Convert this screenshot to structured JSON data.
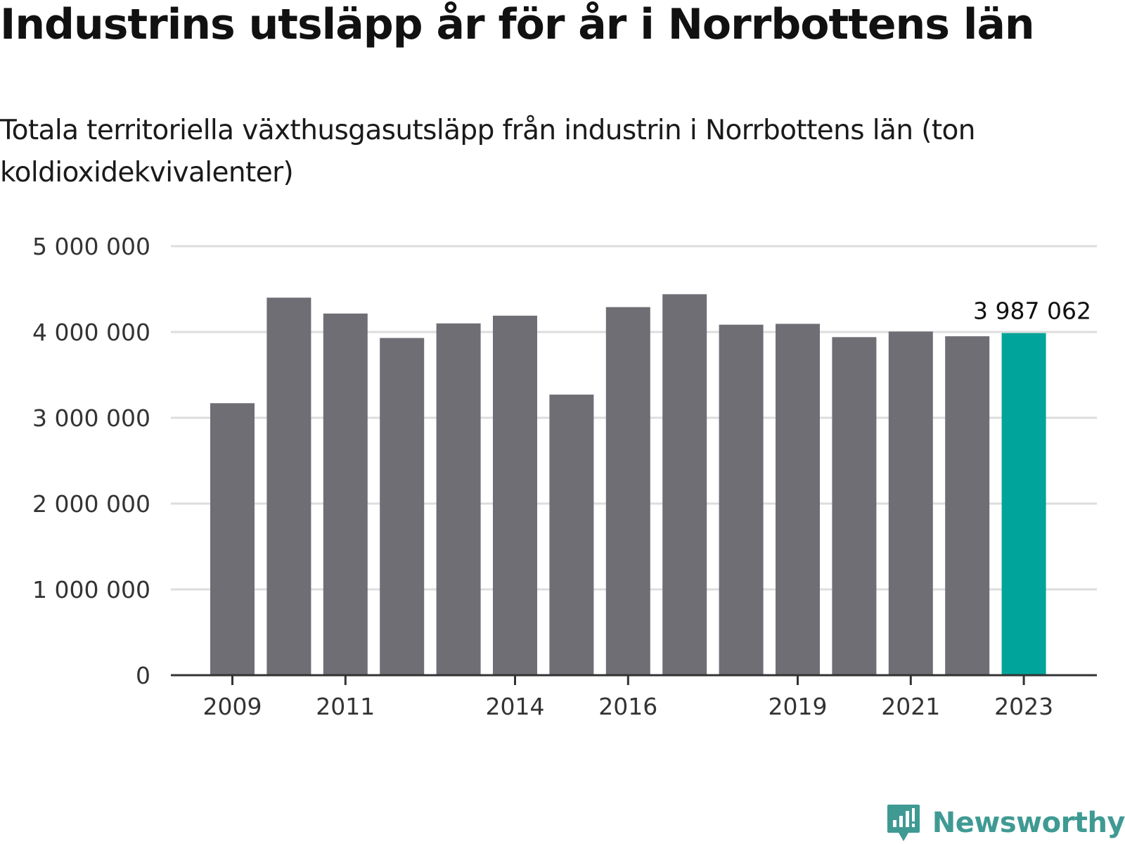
{
  "title": "Industrins utsläpp år för år i Norrbottens län",
  "subtitle": "Totala territoriella växthusgasutsläpp från industrin i Norrbottens län (ton koldioxidekvivalenter)",
  "logo_text": "Newsworthy",
  "colors": {
    "bar": "#6f6e75",
    "highlight": "#00a49a",
    "grid": "#dddddd",
    "axis": "#333333",
    "logo": "#3f9a93"
  },
  "chart_data": {
    "type": "bar",
    "title": "Industrins utsläpp år för år i Norrbottens län",
    "subtitle": "Totala territoriella växthusgasutsläpp från industrin i Norrbottens län (ton koldioxidekvivalenter)",
    "xlabel": "",
    "ylabel": "",
    "categories": [
      "2009",
      "2010",
      "2011",
      "2012",
      "2013",
      "2014",
      "2015",
      "2016",
      "2017",
      "2018",
      "2019",
      "2020",
      "2021",
      "2022",
      "2023"
    ],
    "values": [
      3170000,
      4400000,
      4215000,
      3930000,
      4100000,
      4190000,
      3270000,
      4290000,
      4440000,
      4085000,
      4095000,
      3940000,
      4005000,
      3950000,
      3987062
    ],
    "highlight_index": 14,
    "ylim": [
      0,
      5000000
    ],
    "yticks": [
      0,
      1000000,
      2000000,
      3000000,
      4000000,
      5000000
    ],
    "ytick_labels": [
      "0",
      "1 000 000",
      "2 000 000",
      "3 000 000",
      "4 000 000",
      "5 000 000"
    ],
    "xtick_labels": [
      "2009",
      "2011",
      "2014",
      "2016",
      "2019",
      "2021",
      "2023"
    ],
    "data_labels": [
      {
        "category": "2023",
        "text": "3 987 062"
      }
    ],
    "grid": true,
    "legend": "none"
  }
}
